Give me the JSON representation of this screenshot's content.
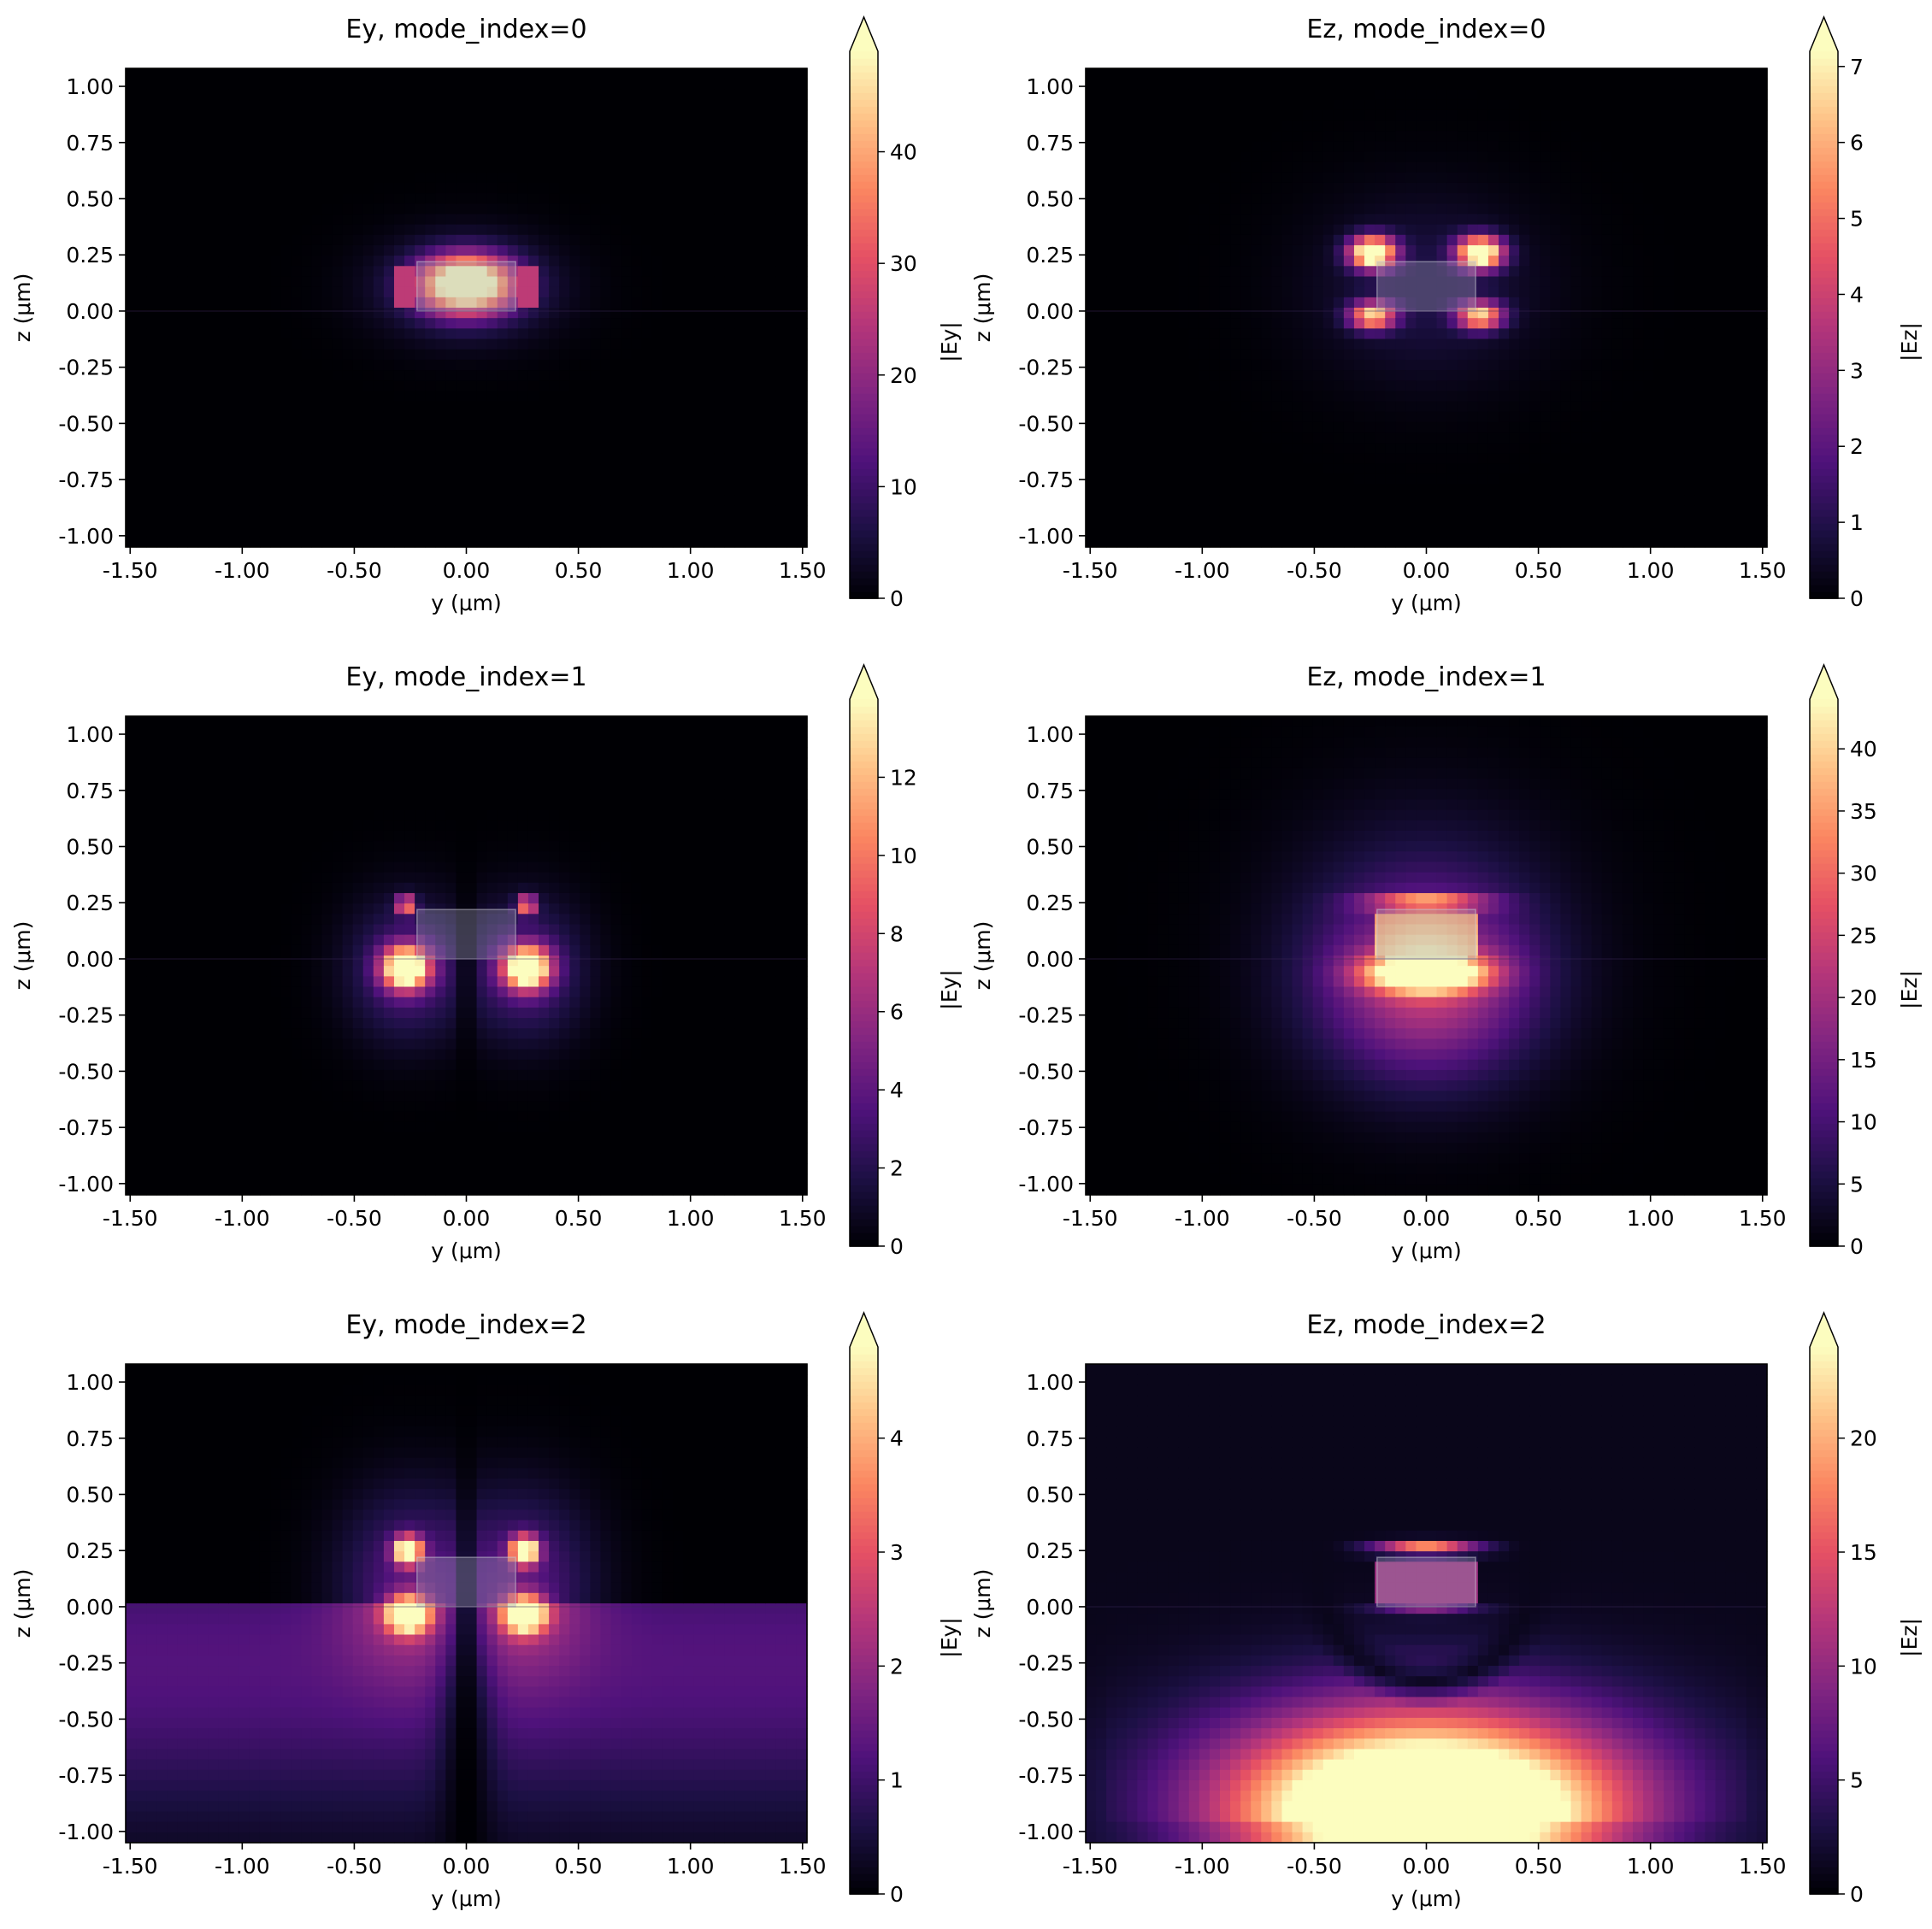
{
  "chart_data": [
    {
      "type": "heatmap",
      "title": "Ey, mode_index=0",
      "xlabel": "y (μm)",
      "ylabel": "z (μm)",
      "xlim": [
        -1.52,
        1.52
      ],
      "ylim": [
        -1.05,
        1.08
      ],
      "xticks": [
        "-1.50",
        "-1.00",
        "-0.50",
        "0.00",
        "0.50",
        "1.00",
        "1.50"
      ],
      "yticks": [
        "-1.00",
        "-0.75",
        "-0.50",
        "-0.25",
        "0.00",
        "0.25",
        "0.50",
        "0.75",
        "1.00"
      ],
      "waveguide": {
        "y": [
          -0.22,
          0.22
        ],
        "z": [
          0.0,
          0.22
        ]
      },
      "colorbar": {
        "label": "|Ey|",
        "min": 0,
        "max": 49,
        "extend": "max",
        "ticks": [
          0,
          10,
          20,
          30,
          40
        ]
      },
      "field_pattern": "fundamental-ey"
    },
    {
      "type": "heatmap",
      "title": "Ez, mode_index=0",
      "xlabel": "y (μm)",
      "ylabel": "z (μm)",
      "xlim": [
        -1.52,
        1.52
      ],
      "ylim": [
        -1.05,
        1.08
      ],
      "xticks": [
        "-1.50",
        "-1.00",
        "-0.50",
        "0.00",
        "0.50",
        "1.00",
        "1.50"
      ],
      "yticks": [
        "-1.00",
        "-0.75",
        "-0.50",
        "-0.25",
        "0.00",
        "0.25",
        "0.50",
        "0.75",
        "1.00"
      ],
      "waveguide": {
        "y": [
          -0.22,
          0.22
        ],
        "z": [
          0.0,
          0.22
        ]
      },
      "colorbar": {
        "label": "|Ez|",
        "min": 0,
        "max": 7.2,
        "extend": "max",
        "ticks": [
          0,
          1,
          2,
          3,
          4,
          5,
          6,
          7
        ]
      },
      "field_pattern": "four-corner-lobes"
    },
    {
      "type": "heatmap",
      "title": "Ey, mode_index=1",
      "xlabel": "y (μm)",
      "ylabel": "z (μm)",
      "xlim": [
        -1.52,
        1.52
      ],
      "ylim": [
        -1.05,
        1.08
      ],
      "xticks": [
        "-1.50",
        "-1.00",
        "-0.50",
        "0.00",
        "0.50",
        "1.00",
        "1.50"
      ],
      "yticks": [
        "-1.00",
        "-0.75",
        "-0.50",
        "-0.25",
        "0.00",
        "0.25",
        "0.50",
        "0.75",
        "1.00"
      ],
      "waveguide": {
        "y": [
          -0.22,
          0.22
        ],
        "z": [
          0.0,
          0.22
        ]
      },
      "colorbar": {
        "label": "|Ey|",
        "min": 0,
        "max": 14,
        "extend": "max",
        "ticks": [
          0,
          2,
          4,
          6,
          8,
          10,
          12
        ]
      },
      "field_pattern": "lower-corner-lobes"
    },
    {
      "type": "heatmap",
      "title": "Ez, mode_index=1",
      "xlabel": "y (μm)",
      "ylabel": "z (μm)",
      "xlim": [
        -1.52,
        1.52
      ],
      "ylim": [
        -1.05,
        1.08
      ],
      "xticks": [
        "-1.50",
        "-1.00",
        "-0.50",
        "0.00",
        "0.50",
        "1.00",
        "1.50"
      ],
      "yticks": [
        "-1.00",
        "-0.75",
        "-0.50",
        "-0.25",
        "0.00",
        "0.25",
        "0.50",
        "0.75",
        "1.00"
      ],
      "waveguide": {
        "y": [
          -0.22,
          0.22
        ],
        "z": [
          0.0,
          0.22
        ]
      },
      "colorbar": {
        "label": "|Ez|",
        "min": 0,
        "max": 44,
        "extend": "max",
        "ticks": [
          0,
          5,
          10,
          15,
          20,
          25,
          30,
          35,
          40
        ]
      },
      "field_pattern": "fundamental-ez"
    },
    {
      "type": "heatmap",
      "title": "Ey, mode_index=2",
      "xlabel": "y (μm)",
      "ylabel": "z (μm)",
      "xlim": [
        -1.52,
        1.52
      ],
      "ylim": [
        -1.05,
        1.08
      ],
      "xticks": [
        "-1.50",
        "-1.00",
        "-0.50",
        "0.00",
        "0.50",
        "1.00",
        "1.50"
      ],
      "yticks": [
        "-1.00",
        "-0.75",
        "-0.50",
        "-0.25",
        "0.00",
        "0.25",
        "0.50",
        "0.75",
        "1.00"
      ],
      "waveguide": {
        "y": [
          -0.22,
          0.22
        ],
        "z": [
          0.0,
          0.22
        ]
      },
      "colorbar": {
        "label": "|Ey|",
        "min": 0,
        "max": 4.8,
        "extend": "max",
        "ticks": [
          0,
          1,
          2,
          3,
          4
        ]
      },
      "field_pattern": "corner-lobes-substrate"
    },
    {
      "type": "heatmap",
      "title": "Ez, mode_index=2",
      "xlabel": "y (μm)",
      "ylabel": "z (μm)",
      "xlim": [
        -1.52,
        1.52
      ],
      "ylim": [
        -1.05,
        1.08
      ],
      "xticks": [
        "-1.50",
        "-1.00",
        "-0.50",
        "0.00",
        "0.50",
        "1.00",
        "1.50"
      ],
      "yticks": [
        "-1.00",
        "-0.75",
        "-0.50",
        "-0.25",
        "0.00",
        "0.25",
        "0.50",
        "0.75",
        "1.00"
      ],
      "waveguide": {
        "y": [
          -0.22,
          0.22
        ],
        "z": [
          0.0,
          0.22
        ]
      },
      "colorbar": {
        "label": "|Ez|",
        "min": 0,
        "max": 24,
        "extend": "max",
        "ticks": [
          0,
          5,
          10,
          15,
          20
        ]
      },
      "field_pattern": "substrate-leaky"
    }
  ],
  "colormap": {
    "name": "magma",
    "stops": [
      "#000004",
      "#1c1044",
      "#4f127b",
      "#812581",
      "#b5367a",
      "#e55064",
      "#fb8761",
      "#fec287",
      "#fcfdbf"
    ]
  }
}
